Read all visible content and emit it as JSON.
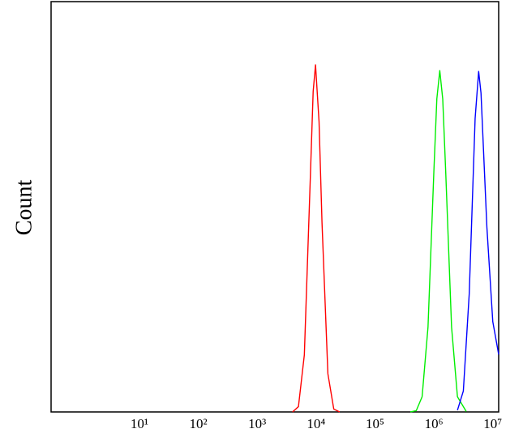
{
  "chart_data": {
    "type": "line",
    "ylabel": "Count",
    "xscale": "log",
    "xlim": [
      0.316,
      12589254
    ],
    "ylim": [
      0,
      100
    ],
    "xticks": [
      {
        "value": 10,
        "label": "10¹"
      },
      {
        "value": 100,
        "label": "10²"
      },
      {
        "value": 1000,
        "label": "10³"
      },
      {
        "value": 10000,
        "label": "10⁴"
      },
      {
        "value": 100000,
        "label": "10⁵"
      },
      {
        "value": 1000000,
        "label": "10⁶"
      },
      {
        "value": 10000000,
        "label": "10⁷"
      }
    ],
    "grid": false,
    "series": [
      {
        "color": "#ff0000",
        "x": [
          3981,
          5012,
          6310,
          7943,
          8913,
          9772,
          11220,
          12589,
          15849,
          19953,
          25119
        ],
        "values": [
          0,
          1.3,
          13.9,
          56.4,
          78.1,
          84.6,
          70.7,
          46.2,
          9.3,
          0.7,
          0
        ]
      },
      {
        "color": "#00ee00",
        "x": [
          398107,
          501187,
          630957,
          794328,
          1000000,
          1122018,
          1258925,
          1412538,
          1584893,
          1995262,
          2511886,
          3548134
        ],
        "values": [
          0,
          0.3,
          3.7,
          20.7,
          58.8,
          76.3,
          83.2,
          76.3,
          58.8,
          20.7,
          3.7,
          0.1
        ]
      },
      {
        "color": "#0000ff",
        "x": [
          2511886,
          3162278,
          3981072,
          5011872,
          5754399,
          6309573,
          7943282,
          10000000,
          12589254
        ],
        "values": [
          0.4,
          5.1,
          28.8,
          71.5,
          83,
          77.7,
          45,
          22,
          14
        ]
      }
    ]
  }
}
